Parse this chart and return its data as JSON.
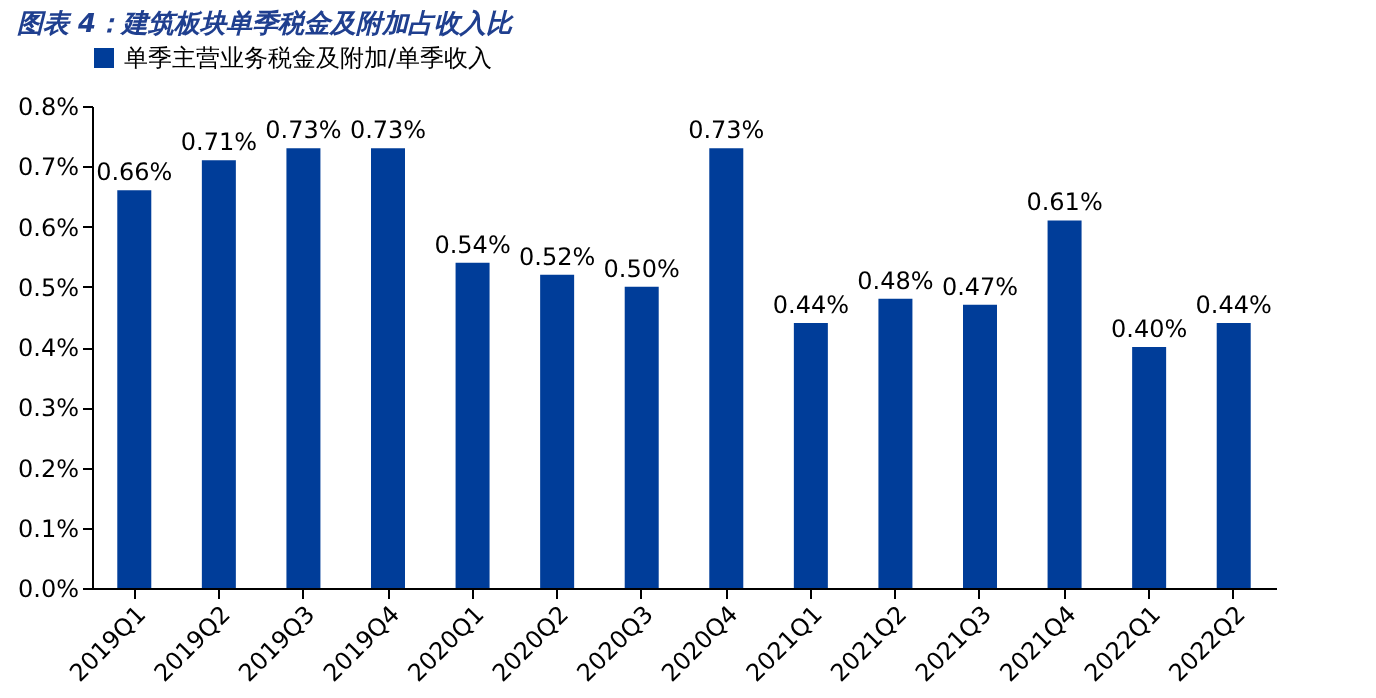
{
  "chart_data": {
    "type": "bar",
    "title": "图表 4：建筑板块单季税金及附加占收入比",
    "categories": [
      "2019Q1",
      "2019Q2",
      "2019Q3",
      "2019Q4",
      "2020Q1",
      "2020Q2",
      "2020Q3",
      "2020Q4",
      "2021Q1",
      "2021Q2",
      "2021Q3",
      "2021Q4",
      "2022Q1",
      "2022Q2"
    ],
    "series": [
      {
        "name": "单季主营业务税金及附加/单季收入",
        "color": "#003d99",
        "values": [
          0.66,
          0.71,
          0.73,
          0.73,
          0.54,
          0.52,
          0.5,
          0.73,
          0.44,
          0.48,
          0.47,
          0.61,
          0.4,
          0.44
        ],
        "value_labels": [
          "0.66%",
          "0.71%",
          "0.73%",
          "0.73%",
          "0.54%",
          "0.52%",
          "0.50%",
          "0.73%",
          "0.44%",
          "0.48%",
          "0.47%",
          "0.61%",
          "0.40%",
          "0.44%"
        ]
      }
    ],
    "ylim": [
      0,
      0.8
    ],
    "yticks": [
      {
        "value": 0,
        "label": "0.0%"
      },
      {
        "value": 0.1,
        "label": "0.1%"
      },
      {
        "value": 0.2,
        "label": "0.2%"
      },
      {
        "value": 0.3,
        "label": "0.3%"
      },
      {
        "value": 0.4,
        "label": "0.4%"
      },
      {
        "value": 0.5,
        "label": "0.5%"
      },
      {
        "value": 0.6,
        "label": "0.6%"
      },
      {
        "value": 0.7,
        "label": "0.7%"
      },
      {
        "value": 0.8,
        "label": "0.8%"
      }
    ],
    "grid": false,
    "legend": "top"
  }
}
